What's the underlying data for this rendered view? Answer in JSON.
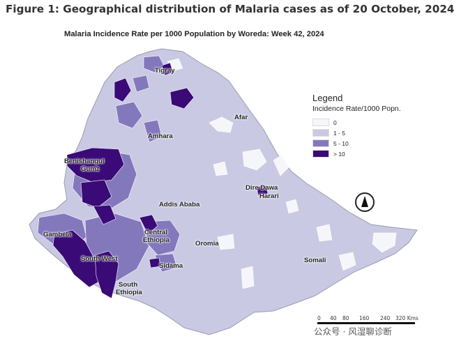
{
  "figure_title": "Figure 1: Geographical distribution of Malaria cases as of 20 October, 2024",
  "map_title": "Malaria Incidence Rate per 1000 Population by Woreda:  Week 42, 2024",
  "colors": {
    "c0": "#f6f6fa",
    "c1": "#c9c9e3",
    "c2": "#8478bd",
    "c3": "#3a0a77",
    "border": "#ffffff",
    "outline": "#9a9ab0"
  },
  "legend": {
    "title": "Legend",
    "subtitle": "Incidence Rate/1000 Popn.",
    "items": [
      {
        "label": "0",
        "color": "#f6f6fa"
      },
      {
        "label": "1 - 5",
        "color": "#c9c9e3"
      },
      {
        "label": "5 - 10",
        "color": "#8478bd"
      },
      {
        "label": "> 10",
        "color": "#3a0a77"
      }
    ]
  },
  "regions": {
    "tigray": "Tigray",
    "afar": "Afar",
    "amhara": "Amhara",
    "benishangul_1": "Benishangul",
    "benishangul_2": "Gumz",
    "addis": "Addis Ababa",
    "dire_dawa": "Dire Dawa",
    "harari": "Harari",
    "gambela": "Gambela",
    "central_1": "Central",
    "central_2": "Ethiopia",
    "oromia": "Oromia",
    "south_west": "South West",
    "sidama": "Sidama",
    "south_1": "South",
    "south_2": "Ethiopia",
    "somali": "Somali"
  },
  "compass_icon": "north-arrow-icon",
  "scale": {
    "ticks": [
      "0",
      "40",
      "80",
      "160",
      "240",
      "320 Kms"
    ]
  },
  "watermark": "公众号 · 风湿聊诊断"
}
